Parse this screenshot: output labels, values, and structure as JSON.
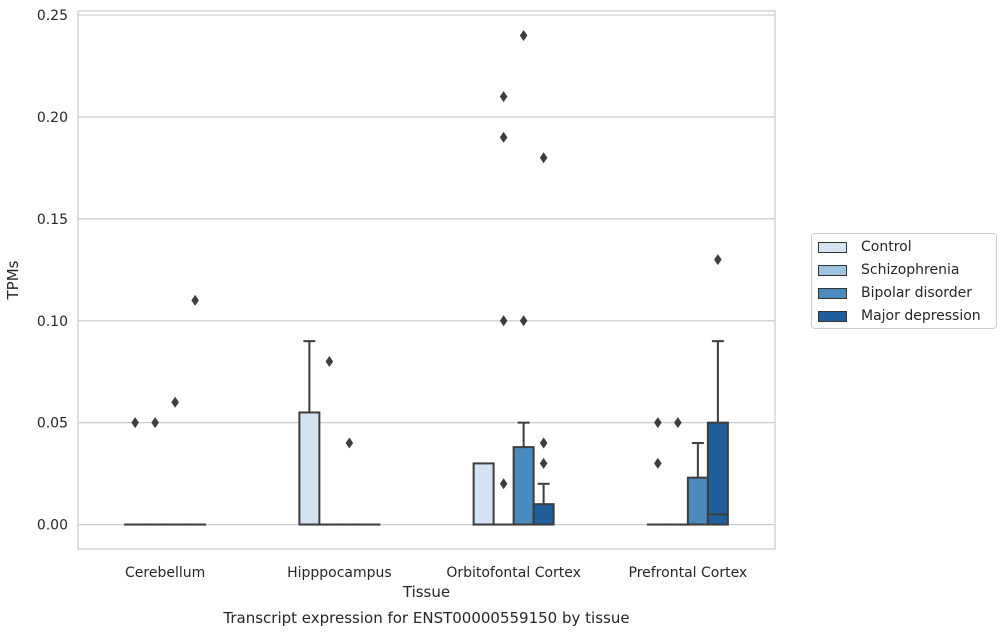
{
  "chart_data": {
    "type": "box",
    "title": "Transcript expression for ENST00000559150 by tissue",
    "xlabel": "Tissue",
    "ylabel": "TPMs",
    "ylim": [
      -0.012,
      0.252
    ],
    "yticks": [
      "0.00",
      "0.05",
      "0.10",
      "0.15",
      "0.20",
      "0.25"
    ],
    "ytick_values": [
      0,
      0.05,
      0.1,
      0.15,
      0.2,
      0.25
    ],
    "categories": [
      "Cerebellum",
      "Hipppocampus",
      "Orbitofontal Cortex",
      "Prefrontal Cortex"
    ],
    "grid": true,
    "legend_position": "right",
    "series": [
      {
        "name": "Control",
        "color": "#d4e3f1",
        "boxes": [
          {
            "q1": 0,
            "median": 0,
            "q3": 0,
            "whisker_low": 0,
            "whisker_high": 0,
            "outliers": [
              0.05
            ]
          },
          {
            "q1": 0,
            "median": 0,
            "q3": 0.055,
            "whisker_low": 0,
            "whisker_high": 0.09,
            "outliers": []
          },
          {
            "q1": 0,
            "median": 0,
            "q3": 0.03,
            "whisker_low": 0,
            "whisker_high": 0.03,
            "outliers": []
          },
          {
            "q1": 0,
            "median": 0,
            "q3": 0,
            "whisker_low": 0,
            "whisker_high": 0,
            "outliers": [
              0.03,
              0.05
            ]
          }
        ]
      },
      {
        "name": "Schizophrenia",
        "color": "#9dc3de",
        "boxes": [
          {
            "q1": 0,
            "median": 0,
            "q3": 0,
            "whisker_low": 0,
            "whisker_high": 0,
            "outliers": [
              0.05
            ]
          },
          {
            "q1": 0,
            "median": 0,
            "q3": 0,
            "whisker_low": 0,
            "whisker_high": 0,
            "outliers": [
              0.08
            ]
          },
          {
            "q1": 0,
            "median": 0,
            "q3": 0,
            "whisker_low": 0,
            "whisker_high": 0,
            "outliers": [
              0.02,
              0.1,
              0.19,
              0.21
            ]
          },
          {
            "q1": 0,
            "median": 0,
            "q3": 0,
            "whisker_low": 0,
            "whisker_high": 0,
            "outliers": [
              0.05
            ]
          }
        ]
      },
      {
        "name": "Bipolar disorder",
        "color": "#4a8bbf",
        "boxes": [
          {
            "q1": 0,
            "median": 0,
            "q3": 0,
            "whisker_low": 0,
            "whisker_high": 0,
            "outliers": [
              0.06
            ]
          },
          {
            "q1": 0,
            "median": 0,
            "q3": 0,
            "whisker_low": 0,
            "whisker_high": 0,
            "outliers": [
              0.04
            ]
          },
          {
            "q1": 0,
            "median": 0,
            "q3": 0.038,
            "whisker_low": 0,
            "whisker_high": 0.05,
            "outliers": [
              0.1,
              0.24
            ]
          },
          {
            "q1": 0,
            "median": 0,
            "q3": 0.023,
            "whisker_low": 0,
            "whisker_high": 0.04,
            "outliers": []
          }
        ]
      },
      {
        "name": "Major depression",
        "color": "#1f5f9c",
        "boxes": [
          {
            "q1": 0,
            "median": 0,
            "q3": 0,
            "whisker_low": 0,
            "whisker_high": 0,
            "outliers": [
              0.11
            ]
          },
          {
            "q1": 0,
            "median": 0,
            "q3": 0,
            "whisker_low": 0,
            "whisker_high": 0,
            "outliers": []
          },
          {
            "q1": 0,
            "median": 0,
            "q3": 0.01,
            "whisker_low": 0,
            "whisker_high": 0.02,
            "outliers": [
              0.03,
              0.04,
              0.18
            ]
          },
          {
            "q1": 0,
            "median": 0.005,
            "q3": 0.05,
            "whisker_low": 0,
            "whisker_high": 0.09,
            "outliers": [
              0.13
            ]
          }
        ]
      }
    ]
  }
}
